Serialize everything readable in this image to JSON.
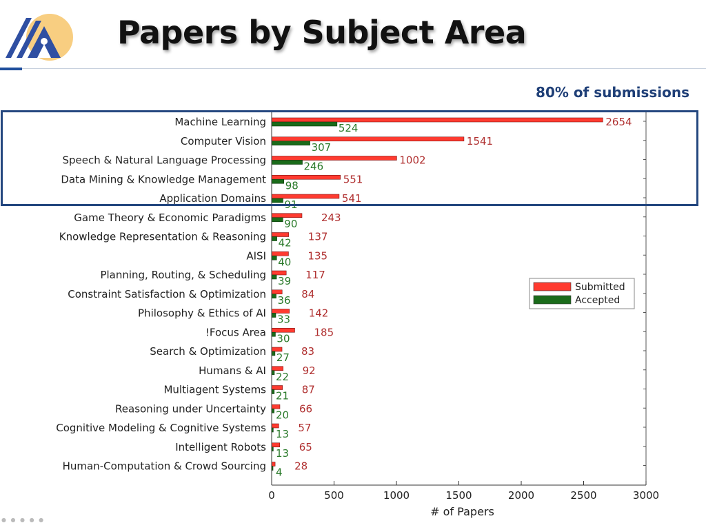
{
  "slide": {
    "title": "Papers by Subject Area",
    "callout": "80% of submissions"
  },
  "colors": {
    "submitted": "#ff3b30",
    "accepted": "#1a6b1a",
    "submitted_label": "#b03030",
    "accepted_label": "#2a7a2a",
    "callout_box": "#24477f",
    "logo_blue": "#2f4fa2",
    "logo_sun": "#f7c66b"
  },
  "chart_data": {
    "type": "bar",
    "orientation": "horizontal",
    "categories": [
      "Machine Learning",
      "Computer Vision",
      "Speech & Natural Language Processing",
      "Data Mining & Knowledge Management",
      "Application Domains",
      "Game Theory & Economic Paradigms",
      "Knowledge Representation & Reasoning",
      "AISI",
      "Planning, Routing, & Scheduling",
      "Constraint Satisfaction & Optimization",
      "Philosophy & Ethics of AI",
      "!Focus Area",
      "Search & Optimization",
      "Humans & AI",
      "Multiagent Systems",
      "Reasoning under Uncertainty",
      "Cognitive Modeling & Cognitive Systems",
      "Intelligent Robots",
      "Human-Computation & Crowd Sourcing"
    ],
    "series": [
      {
        "name": "Submitted",
        "values": [
          2654,
          1541,
          1002,
          551,
          541,
          243,
          137,
          135,
          117,
          84,
          142,
          185,
          83,
          92,
          87,
          66,
          57,
          65,
          28
        ]
      },
      {
        "name": "Accepted",
        "values": [
          524,
          307,
          246,
          98,
          91,
          90,
          42,
          40,
          39,
          36,
          33,
          30,
          27,
          22,
          21,
          20,
          13,
          13,
          4
        ]
      }
    ],
    "xlabel": "# of Papers",
    "xlim": [
      0,
      3000
    ],
    "xticks": [
      0,
      500,
      1000,
      1500,
      2000,
      2500,
      3000
    ],
    "legend": "right",
    "grid": false
  }
}
